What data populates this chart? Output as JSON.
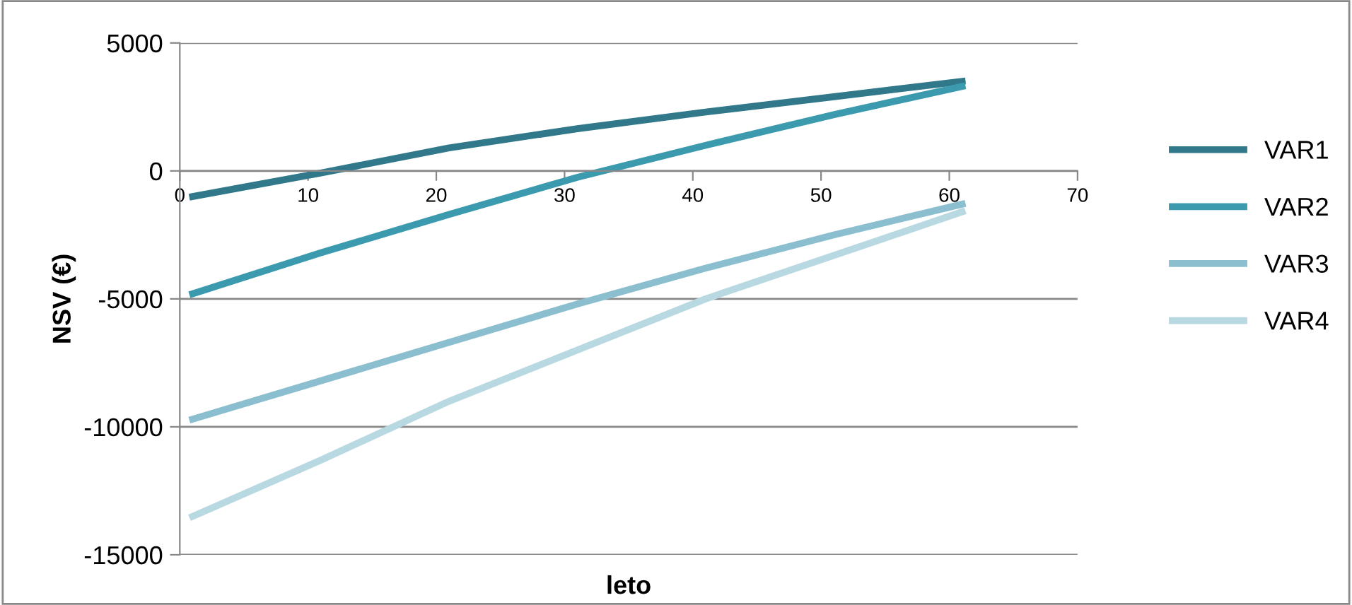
{
  "chart_data": {
    "type": "line",
    "xlabel": "leto",
    "ylabel": "NSV (€)",
    "x": [
      1,
      11,
      21,
      31,
      41,
      51,
      61
    ],
    "series": [
      {
        "name": "VAR1",
        "color": "#31798a",
        "values": [
          -1000,
          -80,
          900,
          1650,
          2300,
          2900,
          3500
        ]
      },
      {
        "name": "VAR2",
        "color": "#3b9aae",
        "values": [
          -4800,
          -3200,
          -1700,
          -250,
          1000,
          2200,
          3300
        ]
      },
      {
        "name": "VAR3",
        "color": "#8bbfd0",
        "values": [
          -9700,
          -8200,
          -6700,
          -5200,
          -3800,
          -2500,
          -1300
        ]
      },
      {
        "name": "VAR4",
        "color": "#b8d8e2",
        "values": [
          -13500,
          -11300,
          -9000,
          -7000,
          -5000,
          -3300,
          -1600
        ]
      }
    ],
    "xlim": [
      0,
      70
    ],
    "xticks": [
      0,
      10,
      20,
      30,
      40,
      50,
      60,
      70
    ],
    "ylim": [
      -15000,
      5000
    ],
    "yticks": [
      -15000,
      -10000,
      -5000,
      0,
      5000
    ],
    "grid": "y",
    "legend": "right",
    "marker": "none",
    "line_style": "solid"
  }
}
